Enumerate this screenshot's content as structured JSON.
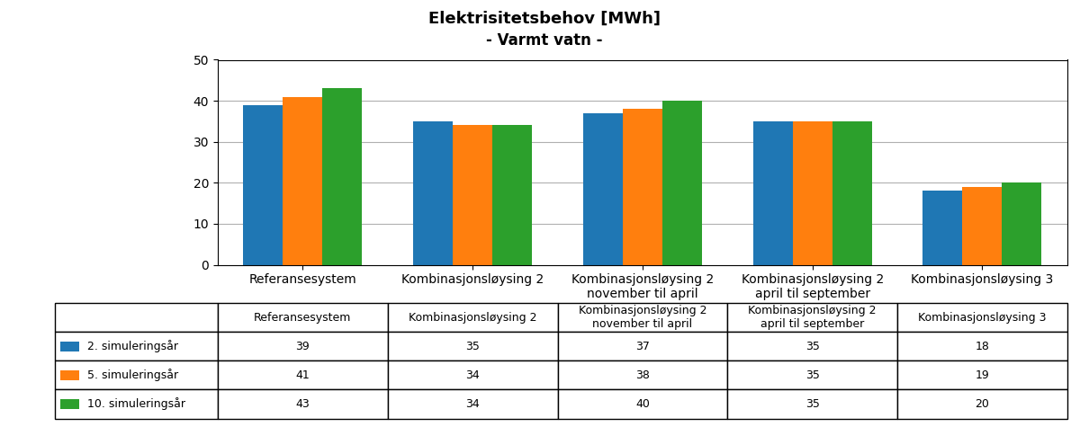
{
  "chart_data": {
    "type": "bar",
    "title": "Elektrisitetsbehov [MWh]",
    "subtitle": "- Varmt vatn -",
    "categories": [
      "Referansesystem",
      "Kombinasjonsløysing 2",
      "Kombinasjonsløysing 2\nnovember til april",
      "Kombinasjonsløysing 2\napril til september",
      "Kombinasjonsløysing 3"
    ],
    "series": [
      {
        "name": "2. simuleringsår",
        "values": [
          39,
          35,
          37,
          35,
          18
        ]
      },
      {
        "name": "5. simuleringsår",
        "values": [
          41,
          34,
          38,
          35,
          19
        ]
      },
      {
        "name": "10. simuleringsår",
        "values": [
          43,
          34,
          40,
          35,
          20
        ]
      }
    ],
    "ylim": [
      0,
      50
    ],
    "yticks": [
      0,
      10,
      20,
      30,
      40,
      50
    ],
    "grid": true
  }
}
